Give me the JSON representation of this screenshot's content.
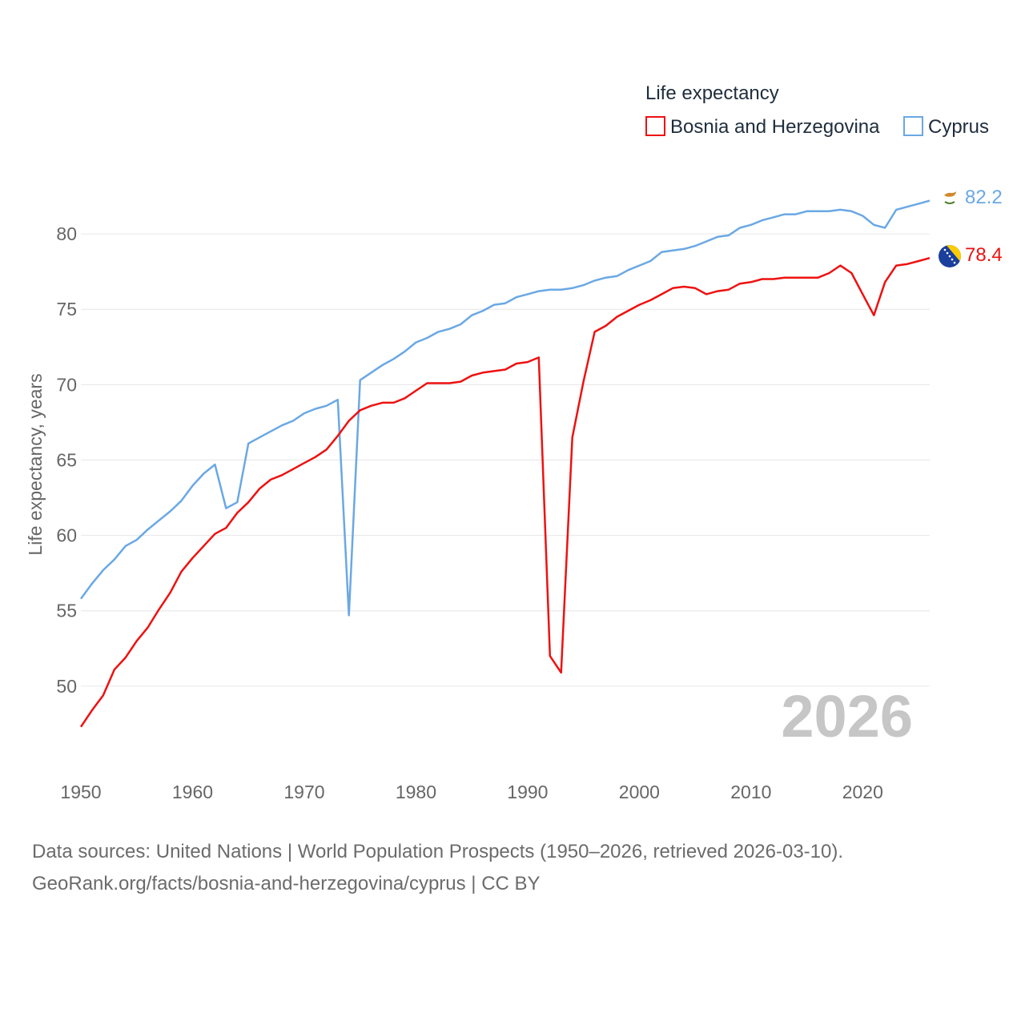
{
  "chart_data": {
    "type": "line",
    "legend_title": "Life expectancy",
    "ylabel": "Life expectancy, years",
    "xlabel": "",
    "ylim": [
      45,
      82.5
    ],
    "xlim": [
      1950,
      2026
    ],
    "yticks": [
      50,
      55,
      60,
      65,
      70,
      75,
      80
    ],
    "xticks": [
      1950,
      1960,
      1970,
      1980,
      1990,
      2000,
      2010,
      2020
    ],
    "year_watermark": "2026",
    "legend_position": "top-right",
    "x": [
      1950,
      1951,
      1952,
      1953,
      1954,
      1955,
      1956,
      1957,
      1958,
      1959,
      1960,
      1961,
      1962,
      1963,
      1964,
      1965,
      1966,
      1967,
      1968,
      1969,
      1970,
      1971,
      1972,
      1973,
      1974,
      1975,
      1976,
      1977,
      1978,
      1979,
      1980,
      1981,
      1982,
      1983,
      1984,
      1985,
      1986,
      1987,
      1988,
      1989,
      1990,
      1991,
      1992,
      1993,
      1994,
      1995,
      1996,
      1997,
      1998,
      1999,
      2000,
      2001,
      2002,
      2003,
      2004,
      2005,
      2006,
      2007,
      2008,
      2009,
      2010,
      2011,
      2012,
      2013,
      2014,
      2015,
      2016,
      2017,
      2018,
      2019,
      2020,
      2021,
      2022,
      2023,
      2024,
      2025,
      2026
    ],
    "series": [
      {
        "name": "Bosnia and Herzegovina",
        "color": "#ee1111",
        "end_label": "78.4",
        "flag": "bosnia-flag-icon",
        "values": [
          47.3,
          48.4,
          49.4,
          51.1,
          51.9,
          53.0,
          53.9,
          55.1,
          56.2,
          57.6,
          58.5,
          59.3,
          60.1,
          60.5,
          61.5,
          62.2,
          63.1,
          63.7,
          64.0,
          64.4,
          64.8,
          65.2,
          65.7,
          66.6,
          67.6,
          68.3,
          68.6,
          68.8,
          68.8,
          69.1,
          69.6,
          70.1,
          70.1,
          70.1,
          70.2,
          70.6,
          70.8,
          70.9,
          71.0,
          71.4,
          71.5,
          71.8,
          52.0,
          50.9,
          66.5,
          70.2,
          73.5,
          73.9,
          74.5,
          74.9,
          75.3,
          75.6,
          76.0,
          76.4,
          76.5,
          76.4,
          76.0,
          76.2,
          76.3,
          76.7,
          76.8,
          77.0,
          77.0,
          77.1,
          77.1,
          77.1,
          77.1,
          77.4,
          77.9,
          77.4,
          76.0,
          74.6,
          76.8,
          77.9,
          78.0,
          78.2,
          78.4
        ]
      },
      {
        "name": "Cyprus",
        "color": "#6aa8e4",
        "end_label": "82.2",
        "flag": "cyprus-flag-icon",
        "values": [
          55.8,
          56.8,
          57.7,
          58.4,
          59.3,
          59.7,
          60.4,
          61.0,
          61.6,
          62.3,
          63.3,
          64.1,
          64.7,
          61.8,
          62.2,
          66.1,
          66.5,
          66.9,
          67.3,
          67.6,
          68.1,
          68.4,
          68.6,
          69.0,
          54.7,
          70.3,
          70.8,
          71.3,
          71.7,
          72.2,
          72.8,
          73.1,
          73.5,
          73.7,
          74.0,
          74.6,
          74.9,
          75.3,
          75.4,
          75.8,
          76.0,
          76.2,
          76.3,
          76.3,
          76.4,
          76.6,
          76.9,
          77.1,
          77.2,
          77.6,
          77.9,
          78.2,
          78.8,
          78.9,
          79.0,
          79.2,
          79.5,
          79.8,
          79.9,
          80.4,
          80.6,
          80.9,
          81.1,
          81.3,
          81.3,
          81.5,
          81.5,
          81.5,
          81.6,
          81.5,
          81.2,
          80.6,
          80.4,
          81.6,
          81.8,
          82.0,
          82.2
        ]
      }
    ]
  },
  "source": {
    "line1": "Data sources: United Nations | World Population Prospects (1950–2026, retrieved 2026-03-10).",
    "line2": "GeoRank.org/facts/bosnia-and-herzegovina/cyprus | CC BY"
  }
}
